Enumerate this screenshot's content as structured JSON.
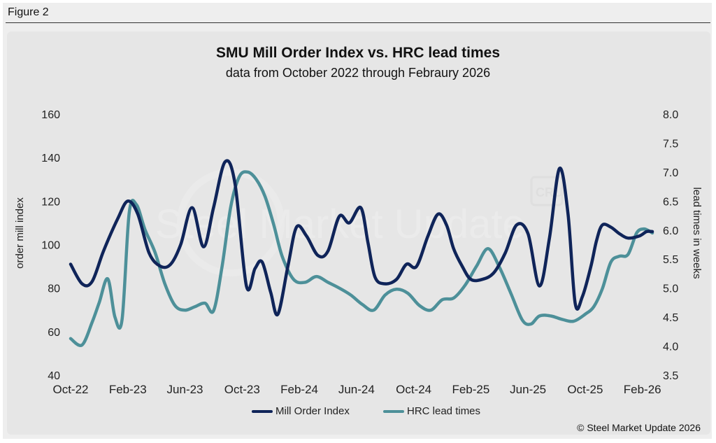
{
  "figure_label": "Figure 2",
  "copyright": "© Steel Market Update 2026",
  "watermark_text": "Steel Market Update",
  "colors": {
    "mill_order_index": "#0f2459",
    "hrc_lead_times": "#4d9099",
    "panel_bg": "#e6e6e6"
  },
  "chart_data": {
    "type": "line",
    "title": "SMU Mill Order Index vs. HRC lead times",
    "subtitle": "data from October 2022 through Febraury 2026",
    "ylabel_left": "order mill index",
    "ylabel_right": "lead times in weeks",
    "ylim_left": [
      40,
      160
    ],
    "ylim_right": [
      3.5,
      8.0
    ],
    "yticks_left": [
      "40",
      "60",
      "80",
      "100",
      "120",
      "140",
      "160"
    ],
    "yticks_right": [
      "3.5",
      "4.0",
      "4.5",
      "5.0",
      "5.5",
      "6.0",
      "6.5",
      "7.0",
      "7.5",
      "8.0"
    ],
    "x_tick_labels": [
      "Oct-22",
      "Feb-23",
      "Jun-23",
      "Oct-23",
      "Feb-24",
      "Jun-24",
      "Oct-24",
      "Feb-25",
      "Jun-25",
      "Oct-25",
      "Feb-26"
    ],
    "x_tick_months": [
      0,
      4,
      8,
      12,
      16,
      20,
      24,
      28,
      32,
      36,
      40
    ],
    "x_range_months": [
      0,
      40.7
    ],
    "legend_position": "bottom",
    "grid": false,
    "series": [
      {
        "name": "Mill Order Index",
        "axis": "left",
        "x_months": [
          0,
          0.8,
          1.5,
          2.3,
          3.3,
          4.0,
          4.7,
          5.5,
          6.3,
          7.0,
          7.7,
          8.5,
          9.3,
          10.0,
          10.8,
          11.5,
          12.3,
          12.9,
          13.4,
          14.0,
          14.5,
          15.2,
          15.8,
          16.5,
          17.3,
          18.0,
          18.8,
          19.5,
          20.3,
          20.8,
          21.3,
          22.0,
          22.8,
          23.5,
          24.2,
          25.0,
          25.7,
          26.3,
          26.8,
          27.4,
          28.0,
          28.8,
          29.6,
          30.4,
          31.2,
          32.0,
          32.8,
          33.5,
          34.2,
          34.8,
          35.3,
          35.8,
          36.4,
          36.8,
          37.2,
          37.8,
          38.4,
          39.0,
          39.8,
          40.3,
          40.7
        ],
        "values": [
          91,
          82,
          83,
          97,
          112,
          120,
          114,
          96,
          90,
          91,
          100,
          117,
          99,
          117,
          138,
          128,
          81,
          89,
          92,
          78,
          68,
          90,
          108,
          104,
          95,
          97,
          113,
          110,
          117,
          101,
          85,
          82,
          84,
          91,
          90,
          104,
          114,
          109,
          98,
          90,
          84,
          84,
          87,
          96,
          109,
          105,
          81,
          103,
          135,
          114,
          73,
          76,
          90,
          102,
          109,
          108,
          105,
          103,
          104,
          106,
          106
        ],
        "color": "#0f2459"
      },
      {
        "name": "HRC lead times",
        "axis": "right",
        "x_months": [
          0,
          0.8,
          1.5,
          2.0,
          2.6,
          3.1,
          3.6,
          4.1,
          4.6,
          5.2,
          5.9,
          6.6,
          7.3,
          8.0,
          8.7,
          9.4,
          10.0,
          10.6,
          11.2,
          11.8,
          12.4,
          13.0,
          13.6,
          14.2,
          14.8,
          15.6,
          16.4,
          17.2,
          18.0,
          18.8,
          19.6,
          20.4,
          21.2,
          22.0,
          22.8,
          23.6,
          24.4,
          25.2,
          26.0,
          26.8,
          27.6,
          28.4,
          29.2,
          30.0,
          30.8,
          31.6,
          32.2,
          32.8,
          33.6,
          34.4,
          35.2,
          36.0,
          36.6,
          37.2,
          37.8,
          38.4,
          39.0,
          39.6,
          40.1,
          40.5,
          40.7
        ],
        "values": [
          4.13,
          4.02,
          4.41,
          4.75,
          5.16,
          4.5,
          4.46,
          6.3,
          6.44,
          6.01,
          5.62,
          5.07,
          4.7,
          4.62,
          4.68,
          4.74,
          4.61,
          5.38,
          6.4,
          6.92,
          7.0,
          6.87,
          6.58,
          6.1,
          5.55,
          5.15,
          5.1,
          5.2,
          5.1,
          5.0,
          4.88,
          4.72,
          4.62,
          4.88,
          4.98,
          4.91,
          4.7,
          4.62,
          4.8,
          4.83,
          5.05,
          5.38,
          5.68,
          5.36,
          4.91,
          4.45,
          4.38,
          4.52,
          4.52,
          4.46,
          4.43,
          4.55,
          4.68,
          4.99,
          5.45,
          5.55,
          5.58,
          5.95,
          6.02,
          5.98,
          5.95
        ],
        "color": "#4d9099"
      }
    ]
  }
}
